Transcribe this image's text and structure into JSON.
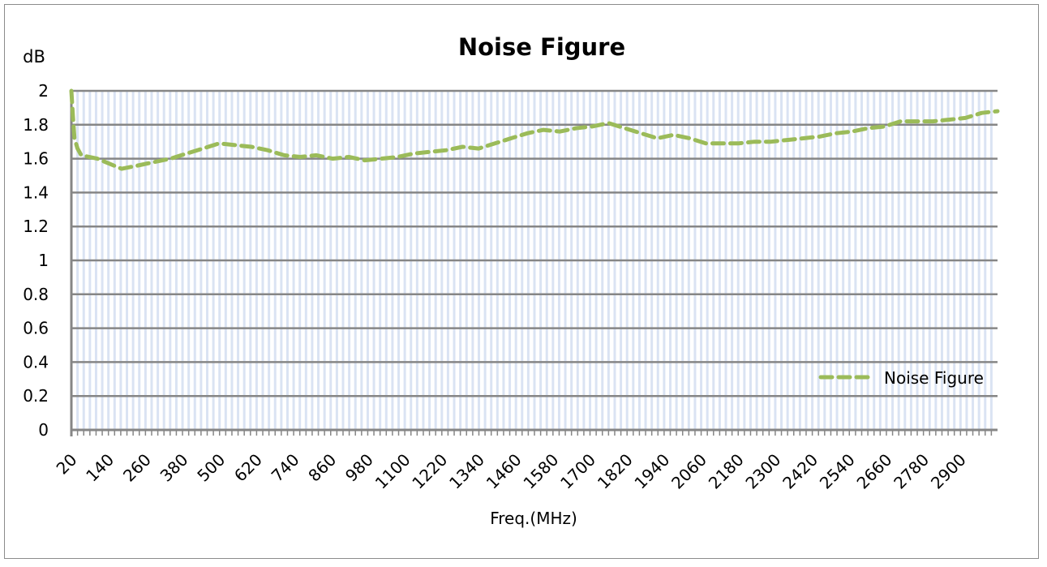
{
  "chart_data": {
    "type": "line",
    "title": "Noise Figure",
    "xlabel": "Freq.(MHz)",
    "ylabel": "dB",
    "xlim": [
      20,
      3020
    ],
    "ylim": [
      0,
      2
    ],
    "category_step": 20,
    "x_tick_labels": [
      "20",
      "140",
      "260",
      "380",
      "500",
      "620",
      "740",
      "860",
      "980",
      "1100",
      "1220",
      "1340",
      "1460",
      "1580",
      "1700",
      "1820",
      "1940",
      "2060",
      "2180",
      "2300",
      "2420",
      "2540",
      "2660",
      "2780",
      "2900"
    ],
    "y_tick_labels": [
      "0",
      "0.2",
      "0.4",
      "0.6",
      "0.8",
      "1",
      "1.2",
      "1.4",
      "1.6",
      "1.8",
      "2"
    ],
    "y_ticks": [
      0,
      0.2,
      0.4,
      0.6,
      0.8,
      1,
      1.2,
      1.4,
      1.6,
      1.8,
      2
    ],
    "grid": true,
    "legend": {
      "position": "bottom-right",
      "entries": [
        "Noise Figure"
      ]
    },
    "series": [
      {
        "name": "Noise Figure",
        "color": "#9bbb59",
        "style": "dashed",
        "x": [
          20,
          25,
          30,
          40,
          52,
          104,
          183,
          236,
          288,
          341,
          393,
          446,
          498,
          551,
          603,
          656,
          709,
          761,
          814,
          866,
          919,
          971,
          1024,
          1077,
          1129,
          1182,
          1234,
          1287,
          1339,
          1392,
          1444,
          1497,
          1549,
          1602,
          1655,
          1707,
          1760,
          1812,
          1865,
          1918,
          1970,
          2023,
          2075,
          2128,
          2180,
          2233,
          2286,
          2338,
          2391,
          2443,
          2496,
          2548,
          2601,
          2654,
          2706,
          2759,
          2811,
          2864,
          2916,
          2969,
          3020
        ],
        "y": [
          2.0,
          1.85,
          1.72,
          1.66,
          1.62,
          1.6,
          1.54,
          1.56,
          1.58,
          1.6,
          1.63,
          1.66,
          1.69,
          1.68,
          1.67,
          1.65,
          1.62,
          1.61,
          1.62,
          1.6,
          1.61,
          1.59,
          1.6,
          1.61,
          1.63,
          1.64,
          1.65,
          1.67,
          1.66,
          1.69,
          1.72,
          1.75,
          1.77,
          1.76,
          1.78,
          1.79,
          1.81,
          1.78,
          1.75,
          1.72,
          1.74,
          1.72,
          1.69,
          1.69,
          1.69,
          1.7,
          1.7,
          1.71,
          1.72,
          1.73,
          1.75,
          1.76,
          1.78,
          1.79,
          1.82,
          1.82,
          1.82,
          1.83,
          1.84,
          1.87,
          1.88
        ]
      }
    ]
  }
}
